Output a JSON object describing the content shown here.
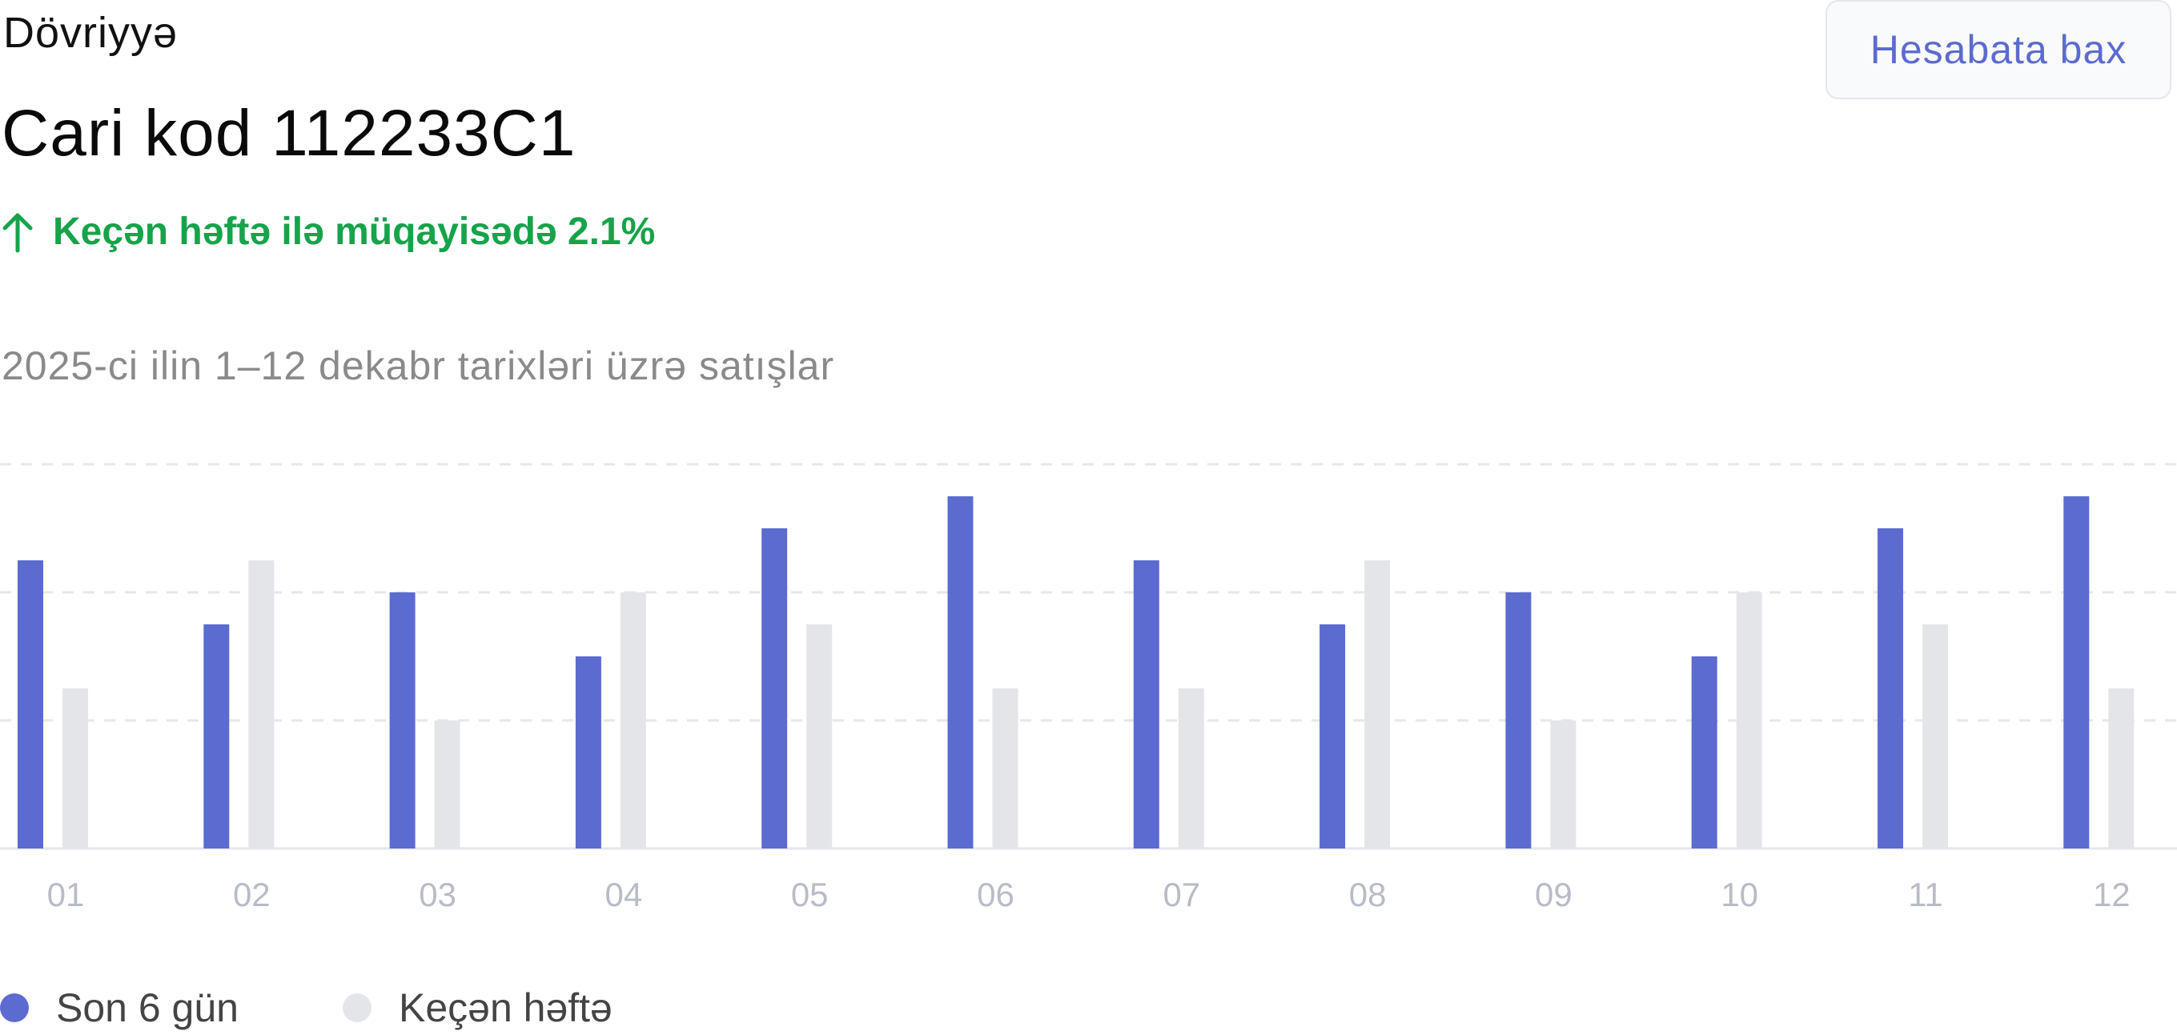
{
  "card": {
    "label": "Dövriyyə",
    "title": "Cari kod 112233C1",
    "trend_text": "Keçən həftə ilə müqayisədə 2.1%",
    "trend_icon": "arrow-up-icon",
    "description": "2025-ci ilin 1–12 dekabr tarixləri üzrə satışlar",
    "report_button": "Hesabata bax"
  },
  "colors": {
    "current": "#5b6bcf",
    "previous": "#e4e5e9",
    "trend": "#16a34a",
    "axis_label": "#b8bcc6",
    "grid": "#e5e7eb"
  },
  "chart_data": {
    "type": "bar",
    "categories": [
      "01",
      "02",
      "03",
      "04",
      "05",
      "06",
      "07",
      "08",
      "09",
      "10",
      "11",
      "12"
    ],
    "series": [
      {
        "name": "Son 6 gün",
        "values": [
          9,
          7,
          8,
          6,
          10,
          11,
          9,
          7,
          8,
          6,
          10,
          11
        ]
      },
      {
        "name": "Keçən həftə",
        "values": [
          5,
          9,
          4,
          8,
          7,
          5,
          5,
          9,
          4,
          8,
          7,
          5
        ]
      }
    ],
    "ylim": [
      0,
      12
    ],
    "grid": true,
    "legend_position": "bottom-left"
  }
}
